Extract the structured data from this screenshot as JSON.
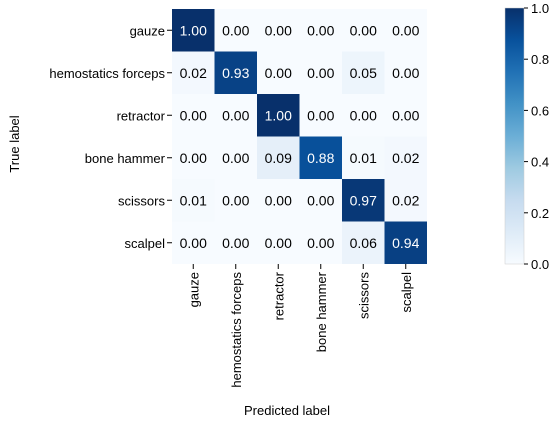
{
  "chart_data": {
    "type": "heatmap",
    "title": "",
    "xlabel": "Predicted label",
    "ylabel": "True label",
    "x_categories": [
      "gauze",
      "hemostatics forceps",
      "retractor",
      "bone hammer",
      "scissors",
      "scalpel"
    ],
    "y_categories": [
      "gauze",
      "hemostatics forceps",
      "retractor",
      "bone hammer",
      "scissors",
      "scalpel"
    ],
    "values": [
      [
        1.0,
        0.0,
        0.0,
        0.0,
        0.0,
        0.0
      ],
      [
        0.02,
        0.93,
        0.0,
        0.0,
        0.05,
        0.0
      ],
      [
        0.0,
        0.0,
        1.0,
        0.0,
        0.0,
        0.0
      ],
      [
        0.0,
        0.0,
        0.09,
        0.88,
        0.01,
        0.02
      ],
      [
        0.01,
        0.0,
        0.0,
        0.0,
        0.97,
        0.02
      ],
      [
        0.0,
        0.0,
        0.0,
        0.0,
        0.06,
        0.94
      ]
    ],
    "colormap": "Blues",
    "colorbar": {
      "range": [
        0.0,
        1.0
      ],
      "ticks": [
        0.0,
        0.2,
        0.4,
        0.6,
        0.8,
        1.0
      ],
      "tick_labels": [
        "0.0",
        "0.2",
        "0.4",
        "0.6",
        "0.8",
        "1.0"
      ]
    },
    "grid": false,
    "legend": "none"
  }
}
